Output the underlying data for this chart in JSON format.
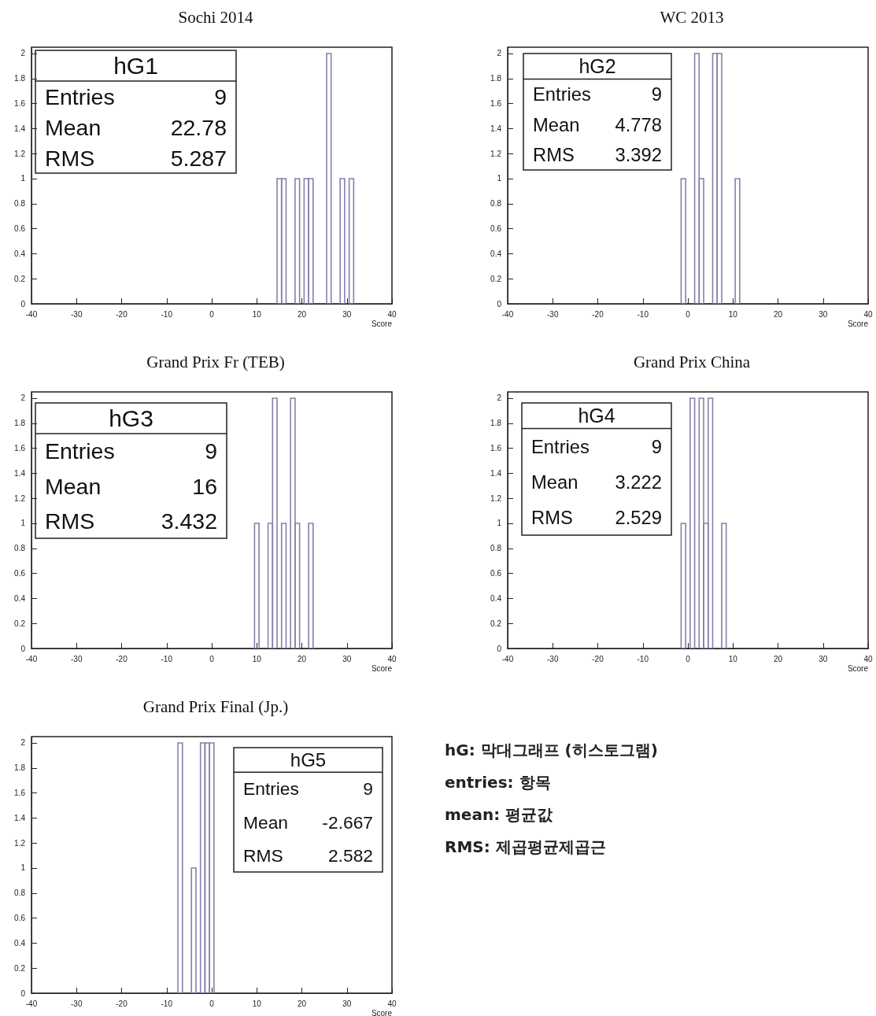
{
  "chart_data": [
    {
      "type": "histogram",
      "title": "Sochi 2014",
      "xlabel": "Score",
      "color": "#8282aa",
      "bins": [
        14.5,
        15.5,
        16.5,
        17.5,
        18.5,
        19.5,
        20.5,
        21.5,
        22.5,
        23.5,
        24.5,
        25.5,
        26.5,
        27.5,
        28.5,
        29.5,
        30.5,
        31.5
      ],
      "values": [
        1,
        1,
        0,
        0,
        1,
        0,
        1,
        1,
        0,
        0,
        0,
        2,
        0,
        0,
        1,
        0,
        1
      ],
      "xlim": [
        -40,
        40
      ],
      "xticks": [
        -40,
        -30,
        -20,
        -10,
        0,
        10,
        20,
        30,
        40
      ],
      "ylim": [
        0,
        2.05
      ],
      "yticks": [
        0,
        0.2,
        0.4,
        0.6,
        0.8,
        1,
        1.2,
        1.4,
        1.6,
        1.8,
        2
      ],
      "annotations": [
        "hG1",
        "Entries",
        "9",
        "Mean",
        "22.78",
        "RMS",
        "5.287"
      ]
    },
    {
      "type": "histogram",
      "title": "WC 2013",
      "xlabel": "Score",
      "color": "#8282aa",
      "bins": [
        -1.5,
        -0.5,
        0.5,
        1.5,
        2.5,
        3.5,
        4.5,
        5.5,
        6.5,
        7.5,
        8.5,
        9.5,
        10.5,
        11.5
      ],
      "values": [
        1,
        0,
        0,
        2,
        1,
        0,
        0,
        2,
        2,
        0,
        0,
        0,
        1
      ],
      "xlim": [
        -40,
        40
      ],
      "xticks": [
        -40,
        -30,
        -20,
        -10,
        0,
        10,
        20,
        30,
        40
      ],
      "ylim": [
        0,
        2.05
      ],
      "yticks": [
        0,
        0.2,
        0.4,
        0.6,
        0.8,
        1,
        1.2,
        1.4,
        1.6,
        1.8,
        2
      ],
      "annotations": [
        "hG2",
        "Entries",
        "9",
        "Mean",
        "4.778",
        "RMS",
        "3.392"
      ]
    },
    {
      "type": "histogram",
      "title": "Grand Prix Fr (TEB)",
      "xlabel": "Score",
      "color": "#8282aa",
      "bins": [
        9.5,
        10.5,
        11.5,
        12.5,
        13.5,
        14.5,
        15.5,
        16.5,
        17.5,
        18.5,
        19.5,
        20.5,
        21.5,
        22.5
      ],
      "values": [
        1,
        0,
        0,
        1,
        2,
        0,
        1,
        0,
        2,
        1,
        0,
        0,
        1
      ],
      "xlim": [
        -40,
        40
      ],
      "xticks": [
        -40,
        -30,
        -20,
        -10,
        0,
        10,
        20,
        30,
        40
      ],
      "ylim": [
        0,
        2.05
      ],
      "yticks": [
        0,
        0.2,
        0.4,
        0.6,
        0.8,
        1,
        1.2,
        1.4,
        1.6,
        1.8,
        2
      ],
      "annotations": [
        "hG3",
        "Entries",
        "9",
        "Mean",
        "16",
        "RMS",
        "3.432"
      ]
    },
    {
      "type": "histogram",
      "title": "Grand Prix China",
      "xlabel": "Score",
      "color": "#8282aa",
      "bins": [
        -1.5,
        -0.5,
        0.5,
        1.5,
        2.5,
        3.5,
        4.5,
        5.5,
        6.5,
        7.5,
        8.5
      ],
      "values": [
        1,
        0,
        2,
        0,
        2,
        1,
        2,
        0,
        0,
        1
      ],
      "xlim": [
        -40,
        40
      ],
      "xticks": [
        -40,
        -30,
        -20,
        -10,
        0,
        10,
        20,
        30,
        40
      ],
      "ylim": [
        0,
        2.05
      ],
      "yticks": [
        0,
        0.2,
        0.4,
        0.6,
        0.8,
        1,
        1.2,
        1.4,
        1.6,
        1.8,
        2
      ],
      "annotations": [
        "hG4",
        "Entries",
        "9",
        "Mean",
        "3.222",
        "RMS",
        "2.529"
      ]
    },
    {
      "type": "histogram",
      "title": "Grand Prix Final (Jp.)",
      "xlabel": "Score",
      "color": "#8282aa",
      "bins": [
        -7.5,
        -6.5,
        -5.5,
        -4.5,
        -3.5,
        -2.5,
        -1.5,
        -0.5,
        0.5
      ],
      "values": [
        2,
        0,
        0,
        1,
        0,
        2,
        2,
        2
      ],
      "xlim": [
        -40,
        40
      ],
      "xticks": [
        -40,
        -30,
        -20,
        -10,
        0,
        10,
        20,
        30,
        40
      ],
      "ylim": [
        0,
        2.05
      ],
      "yticks": [
        0,
        0.2,
        0.4,
        0.6,
        0.8,
        1,
        1.2,
        1.4,
        1.6,
        1.8,
        2
      ],
      "annotations": [
        "hG5",
        "Entries",
        "9",
        "Mean",
        "-2.667",
        "RMS",
        "2.582"
      ]
    },
    {
      "type": "other",
      "annotations": [
        "hG: 막대그래프 (히스토그램)",
        "entries: 항목",
        "mean: 평균값",
        "RMS: 제곱평균제곱근"
      ]
    }
  ]
}
